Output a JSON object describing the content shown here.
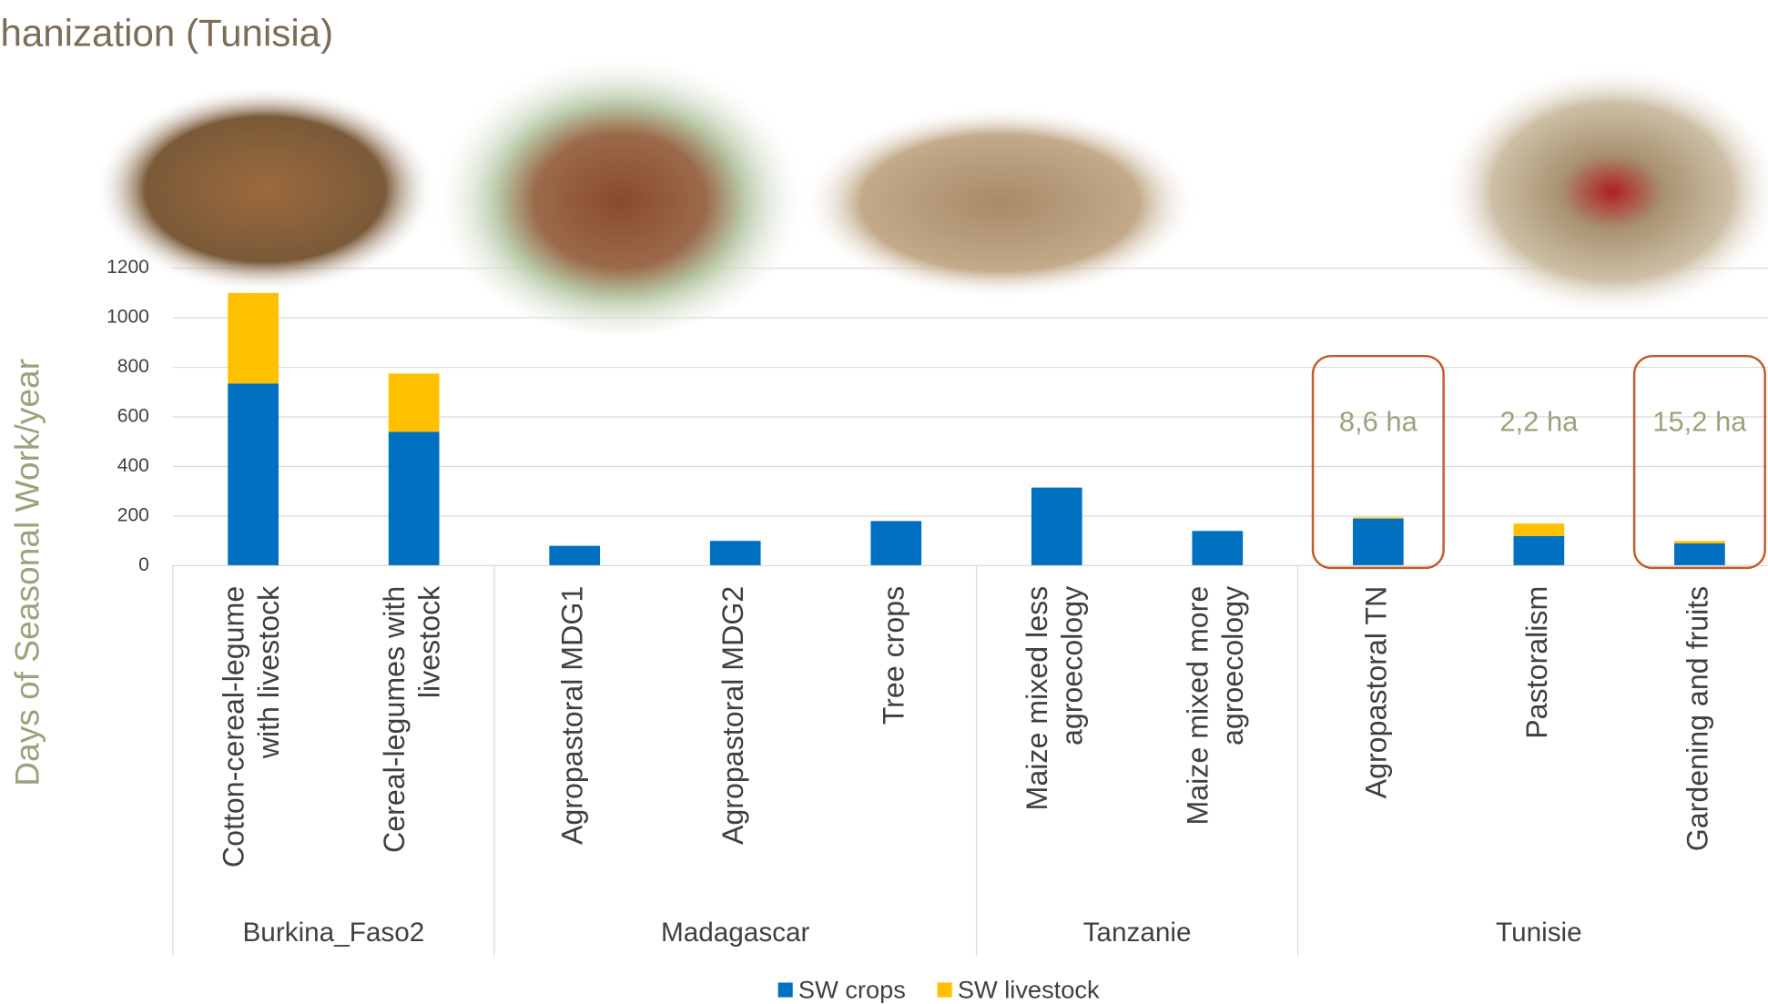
{
  "chart_data": {
    "type": "bar",
    "stacked": true,
    "title": "hanization (Tunisia)",
    "y_label": "Days of Seasonal Work/year",
    "groups": [
      {
        "name": "Burkina_Faso2",
        "categories": [
          [
            "Cotton-cereal-legume",
            "with livestock"
          ],
          [
            "Cereal-legumes with",
            "livestock"
          ]
        ]
      },
      {
        "name": "Madagascar",
        "categories": [
          [
            "Agropastoral MDG1"
          ],
          [
            "Agropastoral MDG2"
          ],
          [
            "Tree crops"
          ]
        ]
      },
      {
        "name": "Tanzanie",
        "categories": [
          [
            "Maize mixed less",
            "agroecology"
          ],
          [
            "Maize mixed more",
            "agroecology"
          ]
        ]
      },
      {
        "name": "Tunisie",
        "categories": [
          [
            "Agropastoral TN"
          ],
          [
            "Pastoralism"
          ],
          [
            "Gardening and fruits"
          ]
        ]
      }
    ],
    "series": [
      {
        "name": "SW crops",
        "color": "#0070c0",
        "values": [
          735,
          540,
          80,
          100,
          180,
          315,
          140,
          190,
          120,
          90
        ]
      },
      {
        "name": "SW livestock",
        "color": "#ffc000",
        "values": [
          365,
          235,
          0,
          0,
          0,
          0,
          0,
          5,
          50,
          10
        ]
      }
    ],
    "annotations": [
      "8,6 ha",
      "2,2  ha",
      "15,2 ha"
    ],
    "ylim": [
      0,
      1200
    ],
    "yticks": [
      0,
      200,
      400,
      600,
      800,
      1000,
      1200
    ],
    "grid": true,
    "legend": "bottom"
  }
}
